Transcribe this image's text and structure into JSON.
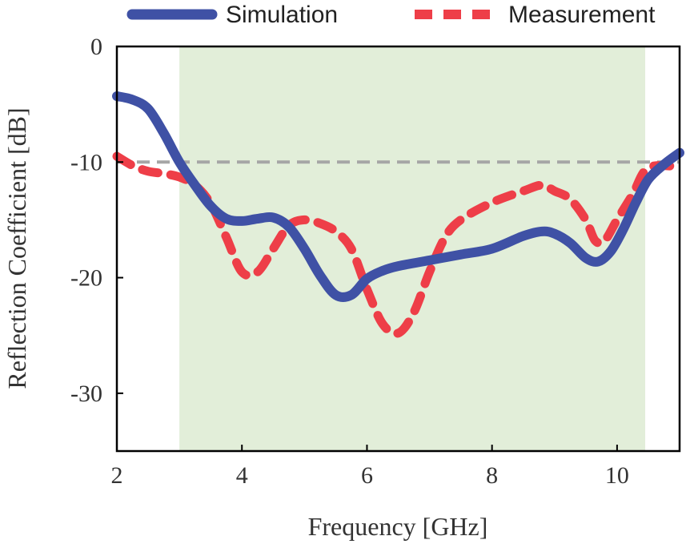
{
  "chart_data": {
    "type": "line",
    "title": "",
    "xlabel": "Frequency [GHz]",
    "ylabel": "Reflection Coefficient [dB]",
    "xlim": [
      2,
      11
    ],
    "ylim": [
      -35,
      0
    ],
    "xticks": [
      2,
      4,
      6,
      8,
      10
    ],
    "yticks": [
      0,
      -10,
      -20,
      -30
    ],
    "grid": false,
    "legend_position": "top",
    "band": {
      "x_start": 3.0,
      "x_end": 10.45,
      "color": "#e2eed9"
    },
    "reference_line": {
      "y": -10,
      "color": "#a6a6a6",
      "style": "dashed"
    },
    "series": [
      {
        "name": "Simulation",
        "color": "#3f51a5",
        "style": "solid",
        "x": [
          2.0,
          2.25,
          2.5,
          2.75,
          3.0,
          3.25,
          3.5,
          3.75,
          4.0,
          4.25,
          4.5,
          4.75,
          5.0,
          5.25,
          5.5,
          5.75,
          6.0,
          6.25,
          6.5,
          7.0,
          7.5,
          8.0,
          8.5,
          8.8,
          9.0,
          9.25,
          9.5,
          9.7,
          9.9,
          10.1,
          10.3,
          10.5,
          10.75,
          11.0
        ],
        "y": [
          -4.3,
          -4.6,
          -5.4,
          -7.5,
          -10.0,
          -12.0,
          -13.8,
          -14.9,
          -15.1,
          -14.9,
          -14.8,
          -15.6,
          -17.5,
          -19.8,
          -21.5,
          -21.5,
          -20.1,
          -19.4,
          -19.0,
          -18.5,
          -18.0,
          -17.5,
          -16.4,
          -16.0,
          -16.2,
          -17.0,
          -18.3,
          -18.6,
          -17.7,
          -15.8,
          -13.5,
          -11.5,
          -10.2,
          -9.2
        ]
      },
      {
        "name": "Measurement",
        "color": "#ee3e48",
        "style": "dashed",
        "x": [
          2.0,
          2.25,
          2.5,
          2.75,
          3.0,
          3.25,
          3.5,
          3.75,
          4.0,
          4.25,
          4.5,
          4.75,
          5.0,
          5.25,
          5.5,
          5.75,
          6.0,
          6.25,
          6.5,
          6.75,
          7.0,
          7.25,
          7.5,
          8.0,
          8.5,
          8.8,
          9.0,
          9.25,
          9.5,
          9.65,
          9.8,
          10.0,
          10.25,
          10.5,
          11.0
        ],
        "y": [
          -9.5,
          -10.3,
          -10.8,
          -11.0,
          -11.3,
          -12.0,
          -13.6,
          -16.5,
          -19.5,
          -19.5,
          -17.5,
          -15.5,
          -15.0,
          -15.3,
          -16.0,
          -17.5,
          -21.0,
          -24.0,
          -24.8,
          -23.0,
          -19.5,
          -16.5,
          -15.0,
          -13.5,
          -12.5,
          -12.0,
          -12.5,
          -13.2,
          -15.0,
          -16.8,
          -16.8,
          -15.0,
          -12.8,
          -10.5,
          -10.4
        ]
      }
    ]
  }
}
